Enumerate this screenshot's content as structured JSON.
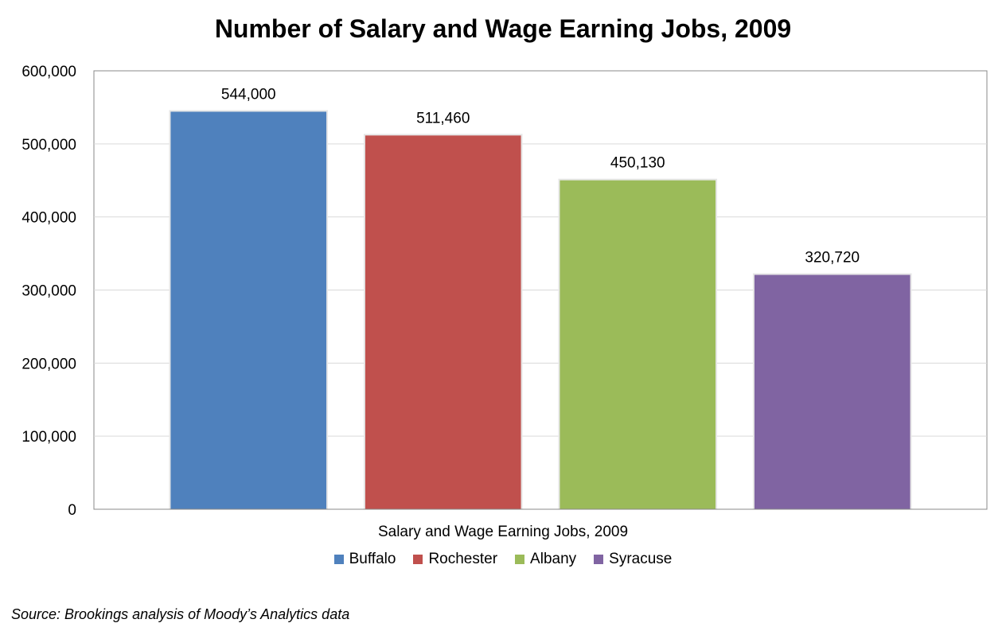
{
  "chart_data": {
    "type": "bar",
    "title": "Number of Salary and Wage Earning Jobs, 2009",
    "xlabel": "Salary and Wage Earning Jobs, 2009",
    "ylabel": "",
    "ylim": [
      0,
      600000
    ],
    "yticks": [
      0,
      100000,
      200000,
      300000,
      400000,
      500000,
      600000
    ],
    "ytick_labels": [
      "0",
      "100,000",
      "200,000",
      "300,000",
      "400,000",
      "500,000",
      "600,000"
    ],
    "grid": true,
    "legend_position": "bottom",
    "series": [
      {
        "name": "Buffalo",
        "value": 544000,
        "label": "544,000",
        "color": "#4F81BD"
      },
      {
        "name": "Rochester",
        "value": 511460,
        "label": "511,460",
        "color": "#C0504D"
      },
      {
        "name": "Albany",
        "value": 450130,
        "label": "450,130",
        "color": "#9BBB59"
      },
      {
        "name": "Syracuse",
        "value": 320720,
        "label": "320,720",
        "color": "#8064A2"
      }
    ]
  },
  "source_note": "Source: Brookings analysis of Moody’s Analytics data"
}
